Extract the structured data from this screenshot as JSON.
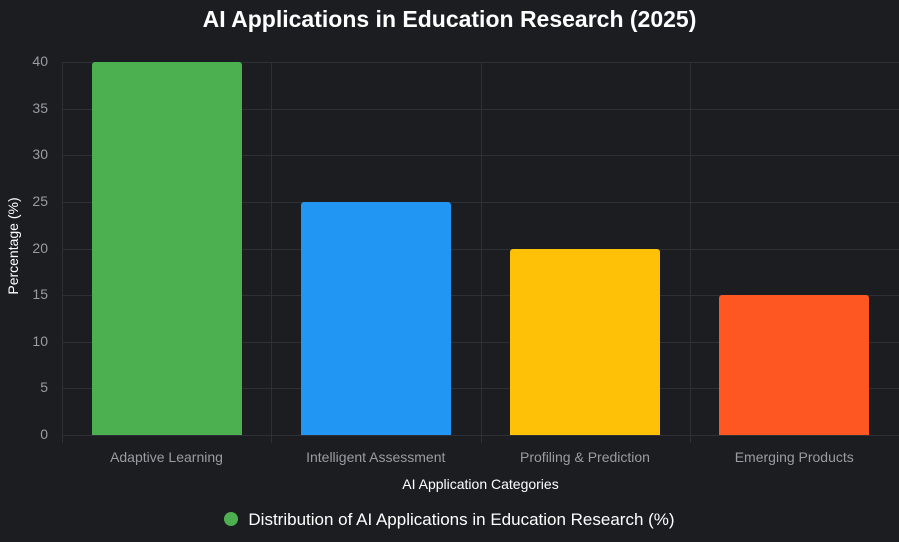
{
  "chart_data": {
    "type": "bar",
    "title": "AI Applications in Education Research (2025)",
    "xlabel": "AI Application Categories",
    "ylabel": "Percentage (%)",
    "categories": [
      "Adaptive Learning",
      "Intelligent Assessment",
      "Profiling & Prediction",
      "Emerging Products"
    ],
    "values": [
      40,
      25,
      20,
      15
    ],
    "colors": [
      "#4caf50",
      "#2196f3",
      "#ffc107",
      "#ff5722"
    ],
    "ylim": [
      0,
      40
    ],
    "yticks": [
      0,
      5,
      10,
      15,
      20,
      25,
      30,
      35,
      40
    ],
    "grid": true,
    "legend": {
      "position": "bottom",
      "entries": [
        "Distribution of AI Applications in Education Research (%)"
      ],
      "color": "#4caf50"
    }
  }
}
